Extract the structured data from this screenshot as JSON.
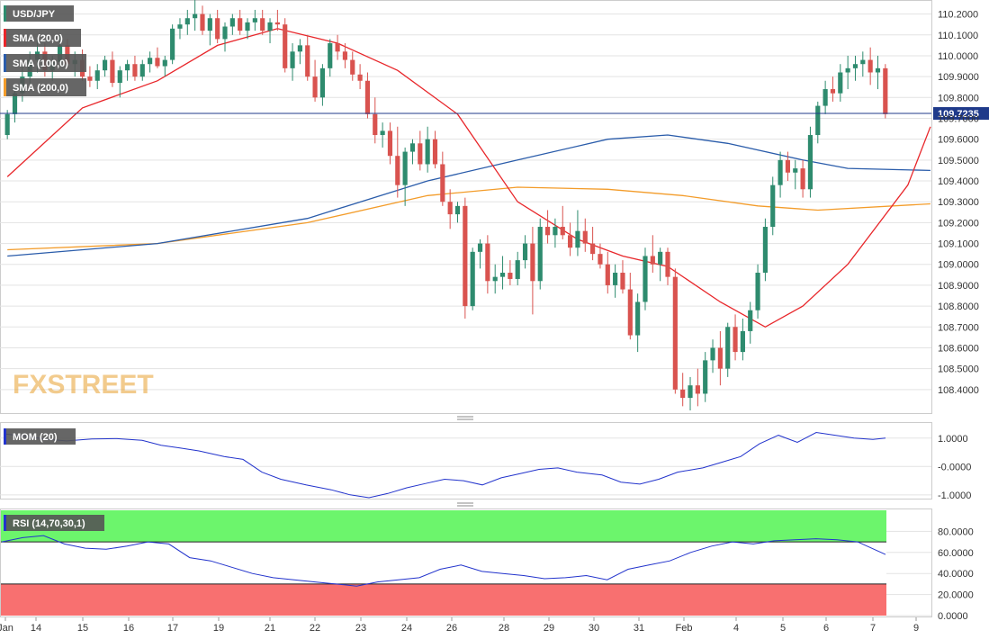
{
  "colors": {
    "up": "#2e8b6e",
    "down": "#d9534f",
    "sma20": "#e8262a",
    "sma100": "#2a5caa",
    "sma200": "#f39c2a",
    "mom": "#2233cc",
    "rsi": "#2233cc",
    "rsi_overbought": "#6cf56c",
    "rsi_oversold": "#f87070",
    "price_line": "#1f3a8a",
    "grid": "#e3e3e3",
    "watermark": "#e8a030"
  },
  "price_panel": {
    "legend": [
      "USD/JPY",
      "SMA (20,0)",
      "SMA (100,0)",
      "SMA (200,0)"
    ],
    "current_price": "109.7235",
    "current_value": 109.7235,
    "ylim": [
      108.3,
      110.25
    ],
    "ticks": [
      "110.2000",
      "110.1000",
      "110.0000",
      "109.9000",
      "109.8000",
      "109.7000",
      "109.6000",
      "109.5000",
      "109.4000",
      "109.3000",
      "109.2000",
      "109.1000",
      "109.0000",
      "108.9000",
      "108.8000",
      "108.7000",
      "108.6000",
      "108.5000",
      "108.4000"
    ],
    "watermark": "FXSTREET"
  },
  "mom_panel": {
    "label": "MOM (20)",
    "ticks": [
      "1.0000",
      "-0.0000",
      "-1.0000"
    ],
    "ylim": [
      -1.1,
      1.5
    ]
  },
  "rsi_panel": {
    "label": "RSI (14,70,30,1)",
    "ticks": [
      "80.0000",
      "60.0000",
      "40.0000",
      "20.0000",
      "0.0000"
    ],
    "ylim": [
      0,
      100
    ],
    "overbought": 70,
    "oversold": 30
  },
  "x_axis": {
    "labels": [
      "Jan",
      "14",
      "15",
      "16",
      "17",
      "19",
      "21",
      "22",
      "23",
      "24",
      "26",
      "28",
      "29",
      "30",
      "31",
      "Feb",
      "4",
      "5",
      "6",
      "7",
      "9"
    ]
  },
  "chart_data": {
    "type": "candlestick",
    "title": "",
    "xlabel": "",
    "ylabel": "",
    "ylim": [
      108.3,
      110.25
    ],
    "candles": [
      [
        109.62,
        109.74,
        109.6,
        109.72
      ],
      [
        109.72,
        109.85,
        109.68,
        109.82
      ],
      [
        109.82,
        109.95,
        109.78,
        109.9
      ],
      [
        109.9,
        110.02,
        109.86,
        109.98
      ],
      [
        109.98,
        110.08,
        109.92,
        110.02
      ],
      [
        110.02,
        110.06,
        109.9,
        109.93
      ],
      [
        109.93,
        110.0,
        109.88,
        109.97
      ],
      [
        109.97,
        110.1,
        109.95,
        110.05
      ],
      [
        110.05,
        110.08,
        109.94,
        109.96
      ],
      [
        109.96,
        110.02,
        109.9,
        109.98
      ],
      [
        109.98,
        110.03,
        109.88,
        109.9
      ],
      [
        109.9,
        109.95,
        109.85,
        109.88
      ],
      [
        109.88,
        109.96,
        109.84,
        109.93
      ],
      [
        109.93,
        110.0,
        109.9,
        109.98
      ],
      [
        109.98,
        110.02,
        109.85,
        109.87
      ],
      [
        109.87,
        109.95,
        109.8,
        109.93
      ],
      [
        109.93,
        109.98,
        109.88,
        109.96
      ],
      [
        109.96,
        110.0,
        109.88,
        109.9
      ],
      [
        109.9,
        109.98,
        109.88,
        109.96
      ],
      [
        109.96,
        110.02,
        109.92,
        109.99
      ],
      [
        109.99,
        110.04,
        109.94,
        109.95
      ],
      [
        109.95,
        110.0,
        109.9,
        109.98
      ],
      [
        109.98,
        110.15,
        109.96,
        110.13
      ],
      [
        110.13,
        110.18,
        110.08,
        110.15
      ],
      [
        110.15,
        110.22,
        110.1,
        110.18
      ],
      [
        110.18,
        110.28,
        110.12,
        110.2
      ],
      [
        110.2,
        110.24,
        110.1,
        110.12
      ],
      [
        110.12,
        110.2,
        110.05,
        110.18
      ],
      [
        110.18,
        110.22,
        110.06,
        110.08
      ],
      [
        110.08,
        110.16,
        110.02,
        110.14
      ],
      [
        110.14,
        110.2,
        110.1,
        110.18
      ],
      [
        110.18,
        110.22,
        110.1,
        110.12
      ],
      [
        110.12,
        110.18,
        110.08,
        110.16
      ],
      [
        110.16,
        110.22,
        110.12,
        110.18
      ],
      [
        110.18,
        110.22,
        110.1,
        110.12
      ],
      [
        110.12,
        110.18,
        110.06,
        110.16
      ],
      [
        110.16,
        110.22,
        110.12,
        110.15
      ],
      [
        110.15,
        110.18,
        109.92,
        109.94
      ],
      [
        109.94,
        110.06,
        109.88,
        110.02
      ],
      [
        110.02,
        110.08,
        109.96,
        110.05
      ],
      [
        110.05,
        110.1,
        109.88,
        109.9
      ],
      [
        109.9,
        109.98,
        109.78,
        109.8
      ],
      [
        109.8,
        109.96,
        109.76,
        109.94
      ],
      [
        109.94,
        110.08,
        109.9,
        110.06
      ],
      [
        110.06,
        110.1,
        109.98,
        110.02
      ],
      [
        110.02,
        110.06,
        109.94,
        109.98
      ],
      [
        109.98,
        110.02,
        109.88,
        109.91
      ],
      [
        109.91,
        109.96,
        109.84,
        109.88
      ],
      [
        109.88,
        109.92,
        109.7,
        109.72
      ],
      [
        109.72,
        109.8,
        109.58,
        109.62
      ],
      [
        109.62,
        109.68,
        109.56,
        109.64
      ],
      [
        109.64,
        109.68,
        109.48,
        109.52
      ],
      [
        109.52,
        109.66,
        109.32,
        109.38
      ],
      [
        109.38,
        109.56,
        109.28,
        109.54
      ],
      [
        109.54,
        109.6,
        109.48,
        109.58
      ],
      [
        109.58,
        109.64,
        109.45,
        109.48
      ],
      [
        109.48,
        109.66,
        109.44,
        109.6
      ],
      [
        109.6,
        109.64,
        109.46,
        109.48
      ],
      [
        109.48,
        109.54,
        109.28,
        109.3
      ],
      [
        109.3,
        109.36,
        109.17,
        109.24
      ],
      [
        109.24,
        109.3,
        109.2,
        109.28
      ],
      [
        109.28,
        109.32,
        108.74,
        108.8
      ],
      [
        108.8,
        109.08,
        108.78,
        109.06
      ],
      [
        109.06,
        109.12,
        108.98,
        109.1
      ],
      [
        109.1,
        109.14,
        108.86,
        108.92
      ],
      [
        108.92,
        109.0,
        108.86,
        108.94
      ],
      [
        108.94,
        109.04,
        108.88,
        108.96
      ],
      [
        108.96,
        109.02,
        108.9,
        108.93
      ],
      [
        108.93,
        109.06,
        108.9,
        109.02
      ],
      [
        109.02,
        109.14,
        108.98,
        109.1
      ],
      [
        109.1,
        109.18,
        108.76,
        108.92
      ],
      [
        108.92,
        109.22,
        108.88,
        109.18
      ],
      [
        109.18,
        109.26,
        109.1,
        109.14
      ],
      [
        109.14,
        109.22,
        109.08,
        109.18
      ],
      [
        109.18,
        109.28,
        109.12,
        109.14
      ],
      [
        109.14,
        109.2,
        109.04,
        109.08
      ],
      [
        109.08,
        109.26,
        109.04,
        109.16
      ],
      [
        109.16,
        109.22,
        109.06,
        109.1
      ],
      [
        109.1,
        109.18,
        109.02,
        109.05
      ],
      [
        109.05,
        109.1,
        108.98,
        109.0
      ],
      [
        109.0,
        109.06,
        108.86,
        108.9
      ],
      [
        108.9,
        109.0,
        108.84,
        108.96
      ],
      [
        108.96,
        109.02,
        108.86,
        108.88
      ],
      [
        108.88,
        108.96,
        108.64,
        108.66
      ],
      [
        108.66,
        108.86,
        108.58,
        108.82
      ],
      [
        108.82,
        109.08,
        108.78,
        109.04
      ],
      [
        109.04,
        109.14,
        108.96,
        109.0
      ],
      [
        109.0,
        109.08,
        108.92,
        109.06
      ],
      [
        109.06,
        109.08,
        108.9,
        108.94
      ],
      [
        108.94,
        108.98,
        108.38,
        108.4
      ],
      [
        108.4,
        108.48,
        108.32,
        108.36
      ],
      [
        108.36,
        108.46,
        108.3,
        108.42
      ],
      [
        108.42,
        108.5,
        108.32,
        108.38
      ],
      [
        108.38,
        108.58,
        108.34,
        108.54
      ],
      [
        108.54,
        108.64,
        108.48,
        108.6
      ],
      [
        108.6,
        108.68,
        108.42,
        108.5
      ],
      [
        108.5,
        108.72,
        108.46,
        108.7
      ],
      [
        108.7,
        108.76,
        108.54,
        108.58
      ],
      [
        108.58,
        108.74,
        108.54,
        108.68
      ],
      [
        108.68,
        108.82,
        108.62,
        108.78
      ],
      [
        108.78,
        109.0,
        108.74,
        108.96
      ],
      [
        108.96,
        109.22,
        108.92,
        109.18
      ],
      [
        109.18,
        109.42,
        109.14,
        109.38
      ],
      [
        109.38,
        109.54,
        109.32,
        109.5
      ],
      [
        109.5,
        109.54,
        109.4,
        109.44
      ],
      [
        109.44,
        109.5,
        109.36,
        109.46
      ],
      [
        109.46,
        109.5,
        109.32,
        109.36
      ],
      [
        109.36,
        109.66,
        109.32,
        109.62
      ],
      [
        109.62,
        109.78,
        109.58,
        109.76
      ],
      [
        109.76,
        109.88,
        109.72,
        109.84
      ],
      [
        109.84,
        109.9,
        109.78,
        109.82
      ],
      [
        109.82,
        109.96,
        109.78,
        109.92
      ],
      [
        109.92,
        110.0,
        109.84,
        109.94
      ],
      [
        109.94,
        110.0,
        109.88,
        109.96
      ],
      [
        109.96,
        110.02,
        109.9,
        109.98
      ],
      [
        109.98,
        110.04,
        109.86,
        109.92
      ],
      [
        109.92,
        110.0,
        109.84,
        109.94
      ],
      [
        109.94,
        109.96,
        109.7,
        109.72
      ]
    ],
    "sma20": [
      [
        0,
        109.42
      ],
      [
        10,
        109.75
      ],
      [
        20,
        109.88
      ],
      [
        28,
        110.05
      ],
      [
        36,
        110.13
      ],
      [
        44,
        110.06
      ],
      [
        52,
        109.93
      ],
      [
        60,
        109.72
      ],
      [
        68,
        109.3
      ],
      [
        76,
        109.12
      ],
      [
        82,
        109.04
      ],
      [
        88,
        108.99
      ],
      [
        95,
        108.82
      ],
      [
        101,
        108.7
      ],
      [
        106,
        108.8
      ],
      [
        112,
        109.0
      ],
      [
        120,
        109.38
      ],
      [
        123,
        109.66
      ]
    ],
    "sma100": [
      [
        0,
        109.04
      ],
      [
        20,
        109.1
      ],
      [
        40,
        109.22
      ],
      [
        56,
        109.4
      ],
      [
        68,
        109.5
      ],
      [
        80,
        109.6
      ],
      [
        88,
        109.62
      ],
      [
        96,
        109.58
      ],
      [
        106,
        109.5
      ],
      [
        112,
        109.46
      ],
      [
        123,
        109.45
      ]
    ],
    "sma200": [
      [
        0,
        109.07
      ],
      [
        20,
        109.1
      ],
      [
        40,
        109.2
      ],
      [
        56,
        109.33
      ],
      [
        68,
        109.37
      ],
      [
        80,
        109.36
      ],
      [
        90,
        109.33
      ],
      [
        100,
        109.28
      ],
      [
        108,
        109.26
      ],
      [
        123,
        109.29
      ]
    ],
    "mom": [
      [
        0,
        1.15
      ],
      [
        8,
        1.05
      ],
      [
        14,
        0.95
      ],
      [
        20,
        0.9
      ],
      [
        28,
        0.97
      ],
      [
        36,
        0.98
      ],
      [
        44,
        0.92
      ],
      [
        50,
        0.75
      ],
      [
        56,
        0.65
      ],
      [
        62,
        0.55
      ],
      [
        70,
        0.35
      ],
      [
        76,
        0.25
      ],
      [
        82,
        -0.2
      ],
      [
        88,
        -0.45
      ],
      [
        96,
        -0.65
      ],
      [
        104,
        -0.82
      ],
      [
        110,
        -1.0
      ],
      [
        116,
        -1.1
      ],
      [
        122,
        -0.95
      ],
      [
        128,
        -0.75
      ],
      [
        134,
        -0.6
      ],
      [
        140,
        -0.45
      ],
      [
        146,
        -0.5
      ],
      [
        152,
        -0.65
      ],
      [
        158,
        -0.4
      ],
      [
        164,
        -0.25
      ],
      [
        170,
        -0.1
      ],
      [
        176,
        -0.05
      ],
      [
        182,
        -0.2
      ],
      [
        190,
        -0.3
      ],
      [
        196,
        -0.55
      ],
      [
        202,
        -0.62
      ],
      [
        208,
        -0.45
      ],
      [
        214,
        -0.2
      ],
      [
        222,
        -0.05
      ],
      [
        228,
        0.15
      ],
      [
        234,
        0.35
      ],
      [
        240,
        0.8
      ],
      [
        246,
        1.1
      ],
      [
        252,
        0.85
      ],
      [
        258,
        1.2
      ],
      [
        264,
        1.1
      ],
      [
        270,
        1.0
      ],
      [
        276,
        0.95
      ],
      [
        280,
        1.0
      ]
    ],
    "rsi": [
      [
        0,
        70
      ],
      [
        6,
        74
      ],
      [
        12,
        76
      ],
      [
        18,
        68
      ],
      [
        24,
        64
      ],
      [
        30,
        63
      ],
      [
        36,
        66
      ],
      [
        42,
        70
      ],
      [
        48,
        68
      ],
      [
        54,
        55
      ],
      [
        60,
        52
      ],
      [
        66,
        46
      ],
      [
        72,
        40
      ],
      [
        78,
        36
      ],
      [
        84,
        34
      ],
      [
        90,
        32
      ],
      [
        96,
        30
      ],
      [
        102,
        28
      ],
      [
        108,
        32
      ],
      [
        114,
        34
      ],
      [
        120,
        36
      ],
      [
        126,
        44
      ],
      [
        132,
        48
      ],
      [
        138,
        42
      ],
      [
        144,
        40
      ],
      [
        150,
        38
      ],
      [
        156,
        35
      ],
      [
        162,
        36
      ],
      [
        168,
        38
      ],
      [
        174,
        34
      ],
      [
        180,
        44
      ],
      [
        186,
        48
      ],
      [
        192,
        52
      ],
      [
        198,
        60
      ],
      [
        204,
        66
      ],
      [
        210,
        70
      ],
      [
        216,
        68
      ],
      [
        222,
        71
      ],
      [
        228,
        72
      ],
      [
        234,
        73
      ],
      [
        240,
        72
      ],
      [
        246,
        70
      ],
      [
        250,
        64
      ],
      [
        254,
        58
      ]
    ]
  }
}
